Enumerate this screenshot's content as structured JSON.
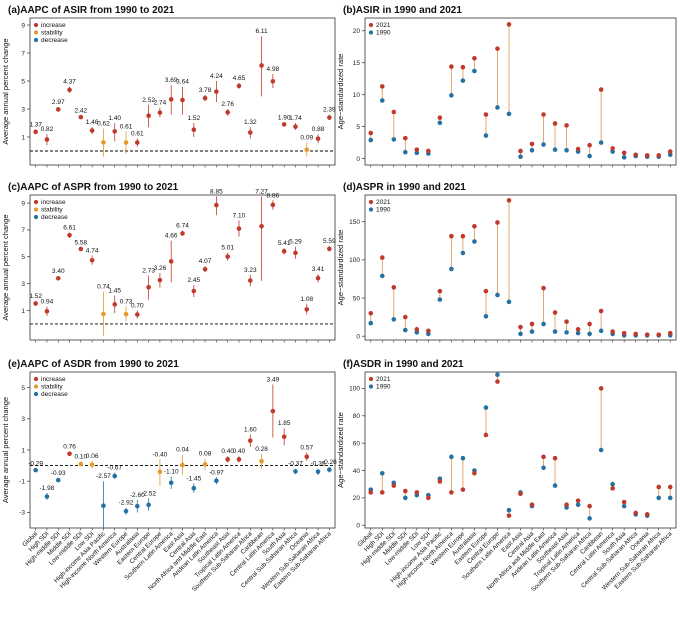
{
  "categories": [
    "Global",
    "High SDI",
    "High-middle SDI",
    "Middle SDI",
    "Low-middle SDI",
    "Low SDI",
    "High-income Asia Pacific",
    "High-income North America",
    "Western Europe",
    "Australasia",
    "Eastern Europe",
    "Central Europe",
    "Southern Latin America",
    "East Asia",
    "Central Asia",
    "North Africa and Middle East",
    "Andean Latin America",
    "Southeast Asia",
    "Tropical Latin America",
    "Southern Sub-Saharan Africa",
    "Caribbean",
    "Central Latin America",
    "South Asia",
    "Central Sub-Saharan Africa",
    "Oceania",
    "Western Sub-Saharan Africa",
    "Eastern Sub-Saharan Africa"
  ],
  "colors": {
    "increase": "#c0392b",
    "stability": "#e69a2e",
    "decrease": "#2471a3",
    "rate2021": "#c0392b",
    "rate1990": "#2471a3",
    "segment": "#e0a060"
  },
  "chart_data": [
    {
      "type": "scatter",
      "panel": "a",
      "title": "(a)AAPC of ASIR from 1990 to 2021",
      "ylabel": "Average annual percent change",
      "ylim": [
        -1,
        9.5
      ],
      "yticks": [
        1,
        3,
        5,
        7,
        9
      ],
      "legend": [
        "increase",
        "stability",
        "decrease"
      ],
      "legend_position": "top-left",
      "values": [
        1.37,
        0.82,
        2.97,
        4.37,
        2.42,
        1.46,
        0.62,
        1.4,
        0.61,
        0.61,
        2.52,
        2.74,
        3.69,
        3.64,
        1.52,
        3.78,
        4.24,
        2.76,
        4.65,
        1.32,
        6.11,
        4.98,
        1.9,
        1.74,
        0.09,
        0.88,
        2.39
      ],
      "lower": [
        1.2,
        0.4,
        2.8,
        4.15,
        2.3,
        1.2,
        -0.4,
        0.7,
        -0.2,
        0.3,
        1.7,
        2.4,
        2.6,
        2.6,
        1.0,
        3.55,
        3.5,
        2.5,
        4.45,
        0.9,
        3.9,
        4.5,
        1.75,
        1.5,
        -0.4,
        0.55,
        2.2
      ],
      "upper": [
        1.55,
        1.2,
        3.15,
        4.6,
        2.55,
        1.7,
        1.6,
        2.0,
        1.4,
        0.9,
        3.3,
        3.1,
        4.7,
        4.6,
        2.0,
        4.0,
        5.0,
        3.0,
        4.85,
        1.7,
        8.2,
        5.5,
        2.05,
        2.0,
        0.6,
        1.2,
        2.6
      ],
      "trend": [
        "increase",
        "increase",
        "increase",
        "increase",
        "increase",
        "increase",
        "stability",
        "increase",
        "stability",
        "increase",
        "increase",
        "increase",
        "increase",
        "increase",
        "increase",
        "increase",
        "increase",
        "increase",
        "increase",
        "increase",
        "increase",
        "increase",
        "increase",
        "increase",
        "stability",
        "increase",
        "increase"
      ],
      "labels": [
        "1.37",
        "0.82",
        "2.97",
        "4.37",
        "2.42",
        "1.46",
        "0.62",
        "1.40",
        "0.61",
        "0.61",
        "2.52",
        "2.74",
        "3.69",
        "3.64",
        "1.52",
        "3.78",
        "4.24",
        "2.76",
        "4.65",
        "1.32",
        "6.11",
        "4.98",
        "1.90",
        "1.74",
        "0.09",
        "0.88",
        "2.39"
      ]
    },
    {
      "type": "dumbbell",
      "panel": "b",
      "title": "(b)ASIR in 1990 and 2021",
      "ylabel": "Age−standardized rate",
      "ylim": [
        -1,
        22
      ],
      "yticks": [
        0,
        5,
        10,
        15,
        20
      ],
      "legend_position": "top-left",
      "series": [
        {
          "name": "2021",
          "values": [
            4.0,
            11.3,
            7.3,
            3.2,
            1.4,
            1.2,
            6.4,
            14.4,
            14.3,
            15.7,
            6.9,
            17.2,
            21.0,
            1.2,
            2.3,
            6.9,
            5.5,
            5.2,
            1.5,
            2.1,
            10.8,
            1.6,
            0.9,
            0.6,
            0.5,
            0.5,
            1.1
          ]
        },
        {
          "name": "1990",
          "values": [
            2.9,
            9.1,
            3.0,
            1.0,
            0.9,
            0.8,
            5.6,
            9.9,
            12.2,
            13.7,
            3.6,
            8.0,
            7.0,
            0.3,
            1.3,
            2.2,
            1.4,
            1.3,
            1.1,
            0.4,
            2.5,
            1.1,
            0.2,
            0.4,
            0.3,
            0.3,
            0.6
          ]
        }
      ]
    },
    {
      "type": "scatter",
      "panel": "c",
      "title": "(c)AAPC of ASPR from 1990 to 2021",
      "ylabel": "Average annual percent change",
      "ylim": [
        -1.2,
        9.6
      ],
      "yticks": [
        1,
        3,
        5,
        7,
        9
      ],
      "legend": [
        "increase",
        "stability",
        "decrease"
      ],
      "legend_position": "top-left",
      "values": [
        1.52,
        0.94,
        3.4,
        6.61,
        5.58,
        4.74,
        0.74,
        1.45,
        0.73,
        0.7,
        2.73,
        3.26,
        4.66,
        6.74,
        2.45,
        4.07,
        8.85,
        5.01,
        7.1,
        3.23,
        7.27,
        8.86,
        5.41,
        5.29,
        1.08,
        3.41,
        5.59
      ],
      "lower": [
        1.35,
        0.6,
        3.25,
        6.4,
        5.45,
        4.4,
        -0.9,
        0.8,
        0.2,
        0.4,
        1.8,
        2.7,
        3.1,
        6.55,
        2.0,
        3.85,
        8.1,
        4.7,
        6.5,
        2.8,
        3.2,
        8.5,
        5.15,
        4.85,
        0.7,
        3.1,
        5.4
      ],
      "upper": [
        1.7,
        1.3,
        3.55,
        6.8,
        5.7,
        5.1,
        2.4,
        2.1,
        1.3,
        1.0,
        3.6,
        3.8,
        6.2,
        6.95,
        2.9,
        4.3,
        9.5,
        5.3,
        7.7,
        3.65,
        9.5,
        9.2,
        5.65,
        5.75,
        1.5,
        3.7,
        5.8
      ],
      "trend": [
        "increase",
        "increase",
        "increase",
        "increase",
        "increase",
        "increase",
        "stability",
        "increase",
        "stability",
        "increase",
        "increase",
        "increase",
        "increase",
        "increase",
        "increase",
        "increase",
        "increase",
        "increase",
        "increase",
        "increase",
        "increase",
        "increase",
        "increase",
        "increase",
        "increase",
        "increase",
        "increase"
      ],
      "labels": [
        "1.52",
        "0.94",
        "3.40",
        "6.61",
        "5.58",
        "4.74",
        "0.74",
        "1.45",
        "0.73",
        "0.70",
        "2.73",
        "3.26",
        "4.66",
        "6.74",
        "2.45",
        "4.07",
        "8.85",
        "5.01",
        "7.10",
        "3.23",
        "7.27",
        "8.86",
        "5.41",
        "5.29",
        "1.08",
        "3.41",
        "5.59"
      ]
    },
    {
      "type": "dumbbell",
      "panel": "d",
      "title": "(d)ASPR in 1990 and 2021",
      "ylabel": "Age−standardized rate",
      "ylim": [
        -5,
        185
      ],
      "yticks": [
        0,
        50,
        100,
        150
      ],
      "legend_position": "top-left",
      "series": [
        {
          "name": "2021",
          "values": [
            30,
            103,
            64,
            25,
            9,
            7,
            59,
            131,
            131,
            144,
            59,
            149,
            178,
            12,
            16,
            63,
            31,
            19,
            9,
            16,
            33,
            6,
            4,
            3,
            2,
            2,
            4
          ]
        },
        {
          "name": "1990",
          "values": [
            17,
            79,
            22,
            8,
            5,
            3,
            48,
            88,
            109,
            124,
            26,
            54,
            45,
            3,
            6,
            16,
            6,
            5,
            4,
            3,
            7,
            3,
            1,
            1,
            1,
            1,
            1
          ]
        }
      ]
    },
    {
      "type": "scatter",
      "panel": "e",
      "title": "(e)AAPC of ASDR from 1990 to 2021",
      "ylabel": "Average annual percent change",
      "ylim": [
        -4.0,
        6.0
      ],
      "yticks": [
        -3,
        -1,
        1,
        3,
        5
      ],
      "legend": [
        "increase",
        "stability",
        "decrease"
      ],
      "legend_position": "top-left",
      "values": [
        -0.29,
        -1.98,
        -0.93,
        0.76,
        0.1,
        0.06,
        -2.57,
        -0.67,
        -2.92,
        -2.6,
        -2.52,
        -0.4,
        -1.1,
        0.04,
        -1.45,
        0.08,
        -0.97,
        0.4,
        0.4,
        1.6,
        0.28,
        3.49,
        1.85,
        -0.37,
        0.57,
        -0.39,
        -0.26
      ],
      "lower": [
        -0.4,
        -2.2,
        -1.05,
        0.6,
        -0.05,
        -0.2,
        -4.0,
        -0.85,
        -3.15,
        -3.0,
        -2.9,
        -1.3,
        -1.5,
        -0.6,
        -1.75,
        -0.3,
        -1.2,
        0.2,
        0.2,
        1.2,
        -0.2,
        1.8,
        1.3,
        -0.55,
        0.3,
        -0.6,
        -0.45
      ],
      "upper": [
        -0.2,
        -1.75,
        -0.8,
        0.9,
        0.25,
        0.3,
        -1.0,
        -0.45,
        -2.7,
        -2.2,
        -2.1,
        0.4,
        -0.7,
        0.7,
        -1.15,
        0.45,
        -0.75,
        0.6,
        0.6,
        2.0,
        0.75,
        5.2,
        2.4,
        -0.2,
        0.85,
        -0.2,
        -0.1
      ],
      "trend": [
        "decrease",
        "decrease",
        "decrease",
        "increase",
        "stability",
        "stability",
        "decrease",
        "decrease",
        "decrease",
        "decrease",
        "decrease",
        "stability",
        "decrease",
        "stability",
        "decrease",
        "stability",
        "decrease",
        "increase",
        "increase",
        "increase",
        "stability",
        "increase",
        "increase",
        "decrease",
        "increase",
        "decrease",
        "decrease"
      ],
      "labels": [
        "-0.29",
        "-1.98",
        "-0.93",
        "0.76",
        "0.10",
        "0.06",
        "-2.57",
        "-0.67",
        "-2.92",
        "-2.60",
        "-2.52",
        "-0.40",
        "-1.10",
        "0.04",
        "-1.45",
        "0.08",
        "-0.97",
        "0.40",
        "0.40",
        "1.60",
        "0.28",
        "3.49",
        "1.85",
        "-0.37",
        "0.57",
        "-0.39",
        "-0.26"
      ]
    },
    {
      "type": "dumbbell",
      "panel": "f",
      "title": "(f)ASDR in 1990 and 2021",
      "ylabel": "Age−standardized rate",
      "ylim": [
        -2,
        112
      ],
      "yticks": [
        0,
        20,
        40,
        60,
        80,
        100
      ],
      "legend_position": "top-left",
      "series": [
        {
          "name": "2021",
          "values": [
            24,
            24,
            29,
            25,
            24,
            20,
            32,
            24,
            26,
            38,
            66,
            105,
            7,
            23,
            15,
            50,
            49,
            15,
            18,
            14,
            100,
            27,
            17,
            9,
            8,
            28,
            28
          ]
        },
        {
          "name": "1990",
          "values": [
            26,
            38,
            31,
            20,
            22,
            22,
            34,
            50,
            49,
            40,
            86,
            110,
            11,
            24,
            14,
            42,
            29,
            13,
            15,
            5,
            55,
            30,
            14,
            8,
            7,
            20,
            20
          ]
        }
      ]
    }
  ]
}
